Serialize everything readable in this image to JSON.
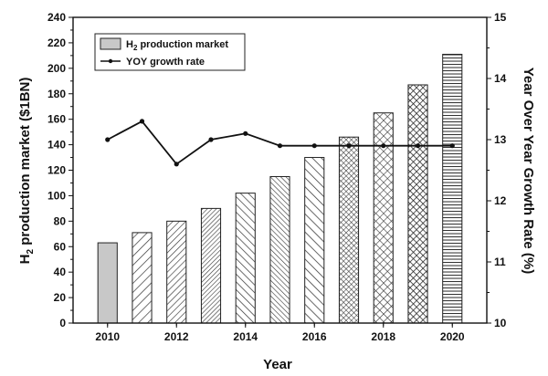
{
  "chart_data": {
    "type": "bar",
    "categories": [
      2010,
      2011,
      2012,
      2013,
      2014,
      2015,
      2016,
      2017,
      2018,
      2019,
      2020
    ],
    "series": [
      {
        "name": "H2 production market",
        "kind": "bar",
        "axis": "left",
        "values": [
          63,
          71,
          80,
          90,
          102,
          115,
          130,
          146,
          165,
          187,
          211
        ]
      },
      {
        "name": "YOY growth rate",
        "kind": "line",
        "axis": "right",
        "values": [
          13.0,
          13.3,
          12.6,
          13.0,
          13.1,
          12.9,
          12.9,
          12.9,
          12.9,
          12.9,
          12.9
        ]
      }
    ],
    "xlabel": "Year",
    "ylabel_left": "H2 production market ($1BN)",
    "ylabel_right": "Year Over Year Growth Rate (%)",
    "xlim": [
      2009,
      2021
    ],
    "ylim_left": [
      0,
      240
    ],
    "ylim_right": [
      10,
      15
    ],
    "x_ticks": [
      2010,
      2012,
      2014,
      2016,
      2018,
      2020
    ],
    "y_ticks_left": [
      0,
      20,
      40,
      60,
      80,
      100,
      120,
      140,
      160,
      180,
      200,
      220,
      240
    ],
    "y_ticks_right": [
      10,
      11,
      12,
      13,
      14,
      15
    ],
    "grid": false,
    "legend_position": "top-left",
    "bar_patterns": [
      "solid-gray",
      "diag-wide",
      "diag-medium",
      "diag-fine",
      "diag-reverse",
      "diag-reverse-fine",
      "diag-reverse-wide",
      "crosshatch-fine",
      "crosshatch",
      "crosshatch-dense",
      "horizontal-lines"
    ],
    "colors": {
      "bar_fill": "#c8c8c8",
      "stroke": "#222222",
      "line": "#111111"
    }
  }
}
